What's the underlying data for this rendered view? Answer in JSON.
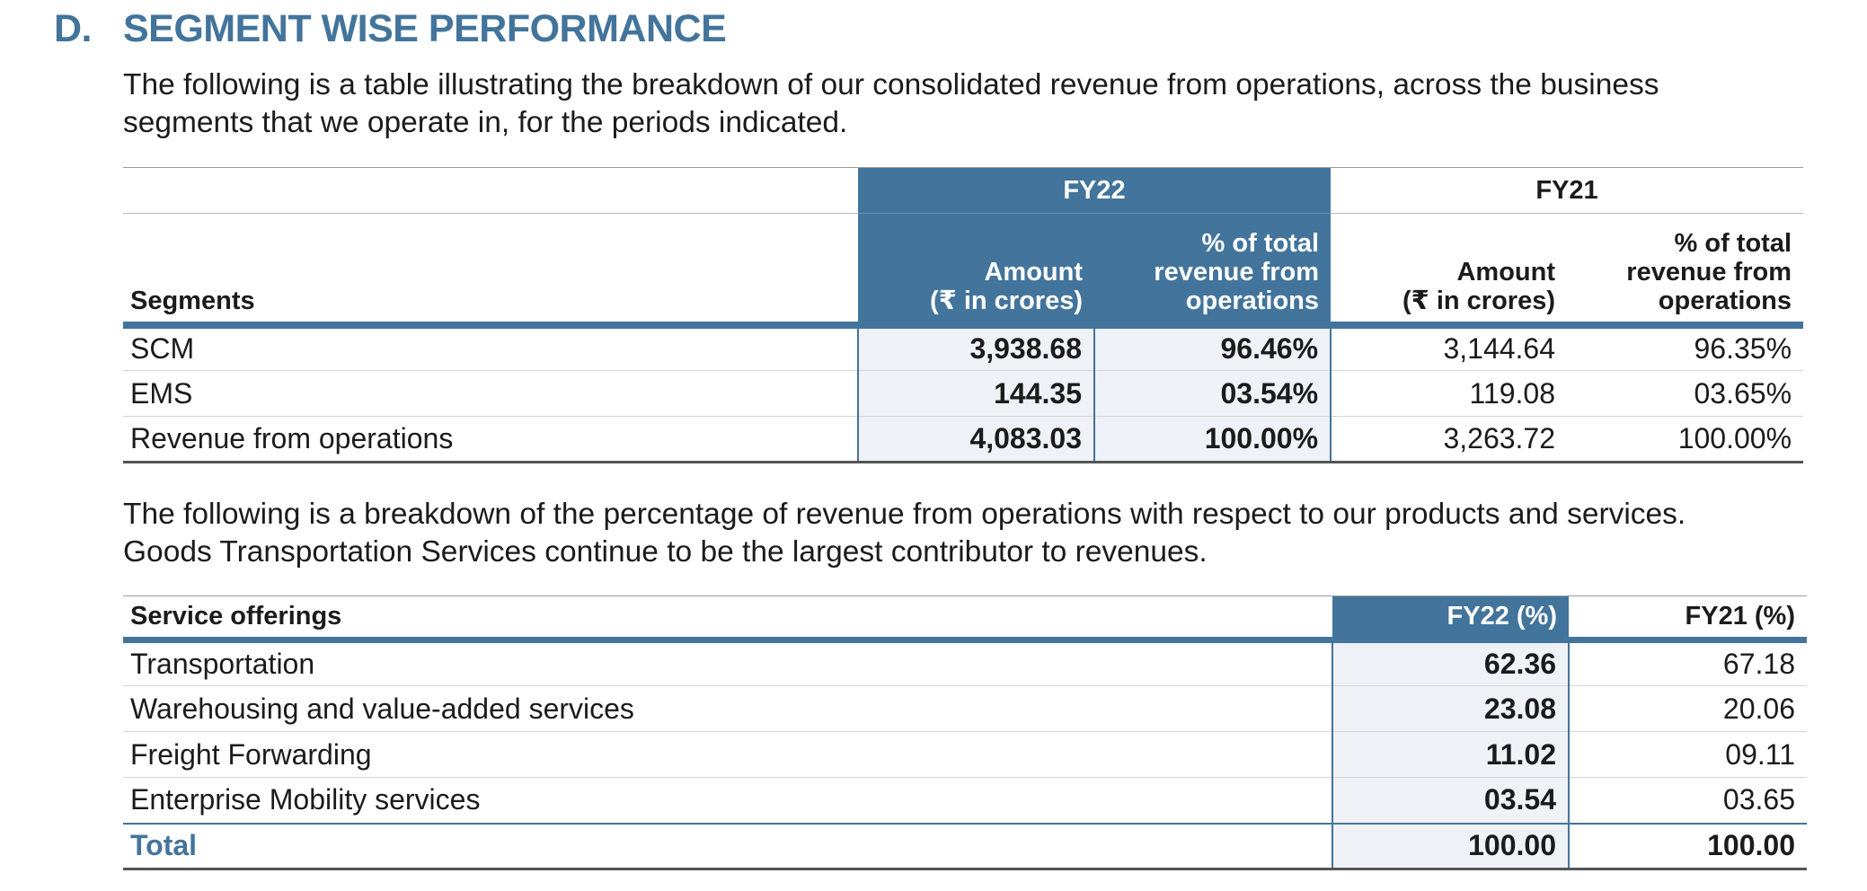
{
  "section": {
    "letter": "D.",
    "title": "SEGMENT WISE PERFORMANCE"
  },
  "intro": {
    "line1": "The following is a table illustrating the breakdown of our consolidated revenue from operations, across the business",
    "line2": "segments that we operate in, for the periods indicated."
  },
  "segment_table": {
    "periods": [
      "FY22",
      "FY21"
    ],
    "headers": {
      "segments": "Segments",
      "amount_line1": "Amount",
      "amount_line2": "(₹ in crores)",
      "pct_line1": "% of total",
      "pct_line2": "revenue from",
      "pct_line3": "operations"
    },
    "rows": [
      {
        "name": "SCM",
        "fy22_amount": "3,938.68",
        "fy22_pct": "96.46%",
        "fy21_amount": "3,144.64",
        "fy21_pct": "96.35%"
      },
      {
        "name": "EMS",
        "fy22_amount": "144.35",
        "fy22_pct": "03.54%",
        "fy21_amount": "119.08",
        "fy21_pct": "03.65%"
      },
      {
        "name": "Revenue from operations",
        "fy22_amount": "4,083.03",
        "fy22_pct": "100.00%",
        "fy21_amount": "3,263.72",
        "fy21_pct": "100.00%"
      }
    ]
  },
  "services_intro": {
    "line1": "The following is a breakdown of the percentage of revenue from operations with respect to our products and services.",
    "line2": "Goods Transportation Services continue to be the largest contributor to revenues."
  },
  "services_table": {
    "headers": {
      "name": "Service offerings",
      "fy22": "FY22 (%)",
      "fy21": "FY21 (%)"
    },
    "rows": [
      {
        "name": "Transportation",
        "fy22": "62.36",
        "fy21": "67.18"
      },
      {
        "name": "Warehousing and value-added services",
        "fy22": "23.08",
        "fy21": "20.06"
      },
      {
        "name": "Freight Forwarding",
        "fy22": "11.02",
        "fy21": "09.11"
      },
      {
        "name": "Enterprise Mobility services",
        "fy22": "03.54",
        "fy21": "03.65"
      }
    ],
    "total": {
      "name": "Total",
      "fy22": "100.00",
      "fy21": "100.00"
    }
  },
  "colors": {
    "accent": "#43749b",
    "highlight_fill": "#eef1f6",
    "text": "#1b1b1b"
  }
}
